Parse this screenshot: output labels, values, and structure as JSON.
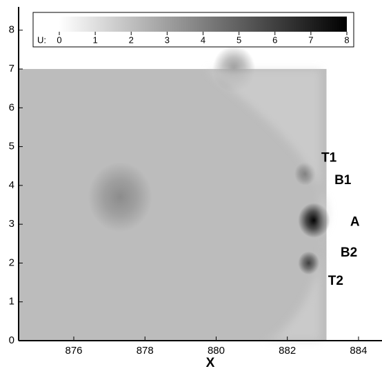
{
  "chart_data": {
    "type": "contour",
    "xlabel": "X",
    "xlim": [
      874.45,
      884.66
    ],
    "xticks": [
      876,
      878,
      880,
      882,
      884
    ],
    "ylim": [
      0,
      8.6
    ],
    "yticks": [
      0,
      1,
      2,
      3,
      4,
      5,
      6,
      7,
      8
    ],
    "region": {
      "x": [
        874.45,
        883.1
      ],
      "y": [
        0,
        7
      ],
      "value": 2.1
    },
    "features": [
      {
        "x": 882.75,
        "y": 3.1,
        "r": 0.45,
        "value": 8
      },
      {
        "x": 882.6,
        "y": 2.0,
        "r": 0.3,
        "value": 6
      },
      {
        "x": 882.5,
        "y": 4.3,
        "r": 0.3,
        "value": 4
      },
      {
        "x": 877.3,
        "y": 3.7,
        "r": 0.9,
        "value": 3.6
      },
      {
        "x": 880.5,
        "y": 7.0,
        "r": 0.6,
        "value": 3.3
      }
    ],
    "colorbar": {
      "label": "U:",
      "lim": [
        0,
        8
      ],
      "ticks": [
        0,
        1,
        2,
        3,
        4,
        5,
        6,
        7,
        8
      ]
    },
    "annotations": [
      {
        "text": "T1",
        "x": 883.17,
        "y": 4.7
      },
      {
        "text": "B1",
        "x": 883.56,
        "y": 4.12
      },
      {
        "text": "A",
        "x": 883.9,
        "y": 3.05
      },
      {
        "text": "B2",
        "x": 883.73,
        "y": 2.26
      },
      {
        "text": "T2",
        "x": 883.36,
        "y": 1.53
      }
    ]
  }
}
